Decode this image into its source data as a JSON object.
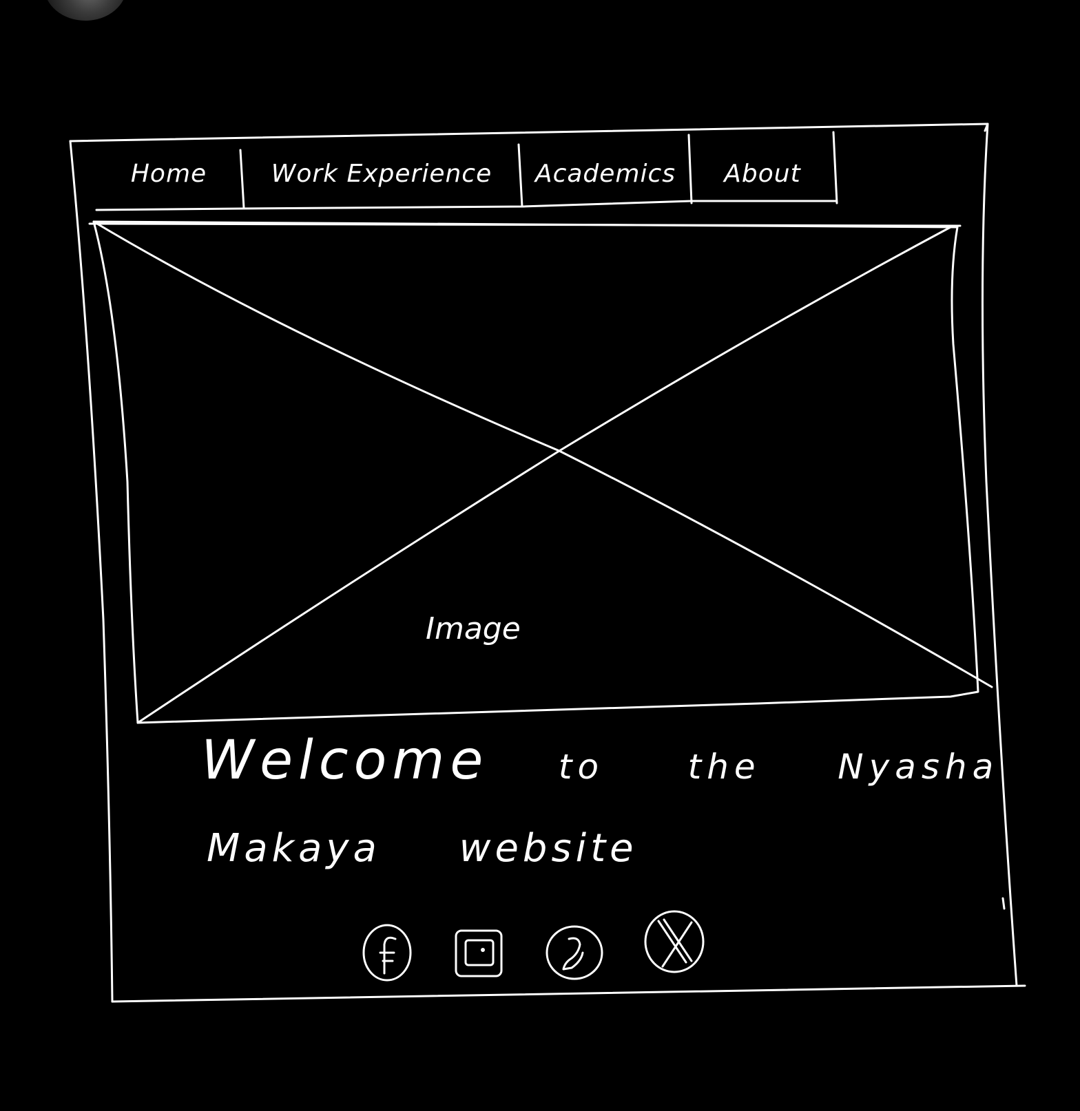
{
  "nav": {
    "tabs": [
      {
        "label": "Home"
      },
      {
        "label": "Work Experience"
      },
      {
        "label": "Academics"
      },
      {
        "label": "About"
      }
    ]
  },
  "hero": {
    "placeholder_label": "Image"
  },
  "welcome": {
    "line1": [
      "Welcome",
      "to",
      "the",
      "Nyasha"
    ],
    "line2": [
      "Makaya",
      "website"
    ]
  },
  "social": [
    {
      "icon": "facebook-icon"
    },
    {
      "icon": "instagram-icon"
    },
    {
      "icon": "whatsapp-icon"
    },
    {
      "icon": "x-icon"
    }
  ],
  "colors": {
    "background": "#000000",
    "stroke": "#ffffff"
  }
}
